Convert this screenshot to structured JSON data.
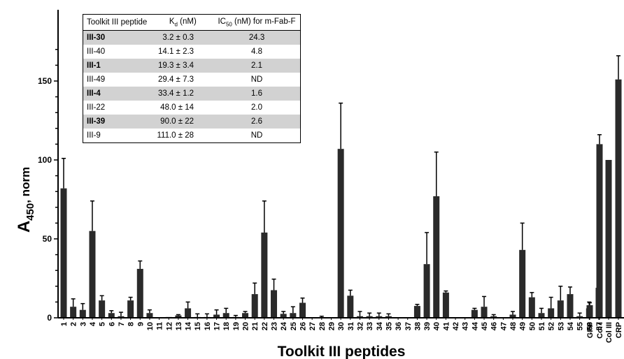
{
  "chart_data": {
    "type": "bar",
    "xlabel": "Toolkit III peptides",
    "ylabel_main": "A",
    "ylabel_sub": "450",
    "ylabel_suffix": ", norm",
    "ylim": [
      0,
      170
    ],
    "yticks": [
      "0",
      "50",
      "100",
      "150"
    ],
    "categories": [
      "1",
      "2",
      "3",
      "4",
      "5",
      "6",
      "7",
      "8",
      "9",
      "10",
      "11",
      "12",
      "13",
      "14",
      "15",
      "16",
      "17",
      "18",
      "19",
      "20",
      "21",
      "22",
      "23",
      "24",
      "25",
      "26",
      "27",
      "28",
      "29",
      "30",
      "31",
      "32",
      "33",
      "34",
      "35",
      "36",
      "37",
      "38",
      "39",
      "40",
      "41",
      "42",
      "43",
      "44",
      "45",
      "46",
      "47",
      "48",
      "49",
      "50",
      "51",
      "52",
      "53",
      "54",
      "55",
      "56",
      "57",
      "GPP",
      "Col I",
      "Col III",
      "CRP"
    ],
    "values": [
      82,
      7,
      5,
      55,
      11,
      3,
      1,
      11,
      31,
      3,
      0,
      0.5,
      1.5,
      6,
      0.5,
      0.5,
      2,
      3,
      0.5,
      3,
      15,
      54,
      17.5,
      2.5,
      3,
      9.5,
      0,
      0,
      0,
      107,
      14,
      1,
      1,
      1,
      1,
      0,
      0,
      7.5,
      34,
      77,
      16,
      0,
      0,
      5,
      7,
      1,
      0,
      2,
      43,
      13,
      3,
      6,
      11,
      15,
      1,
      6,
      19,
      8,
      110,
      100,
      151
    ],
    "errors": [
      19,
      5,
      4,
      19,
      3,
      1.5,
      2.5,
      2,
      5,
      2,
      0,
      0,
      0.5,
      4,
      2,
      2,
      3,
      3,
      1,
      1,
      7,
      20,
      7,
      1.5,
      4,
      3,
      0,
      1,
      0,
      29,
      3.5,
      3,
      2,
      2,
      1.5,
      0,
      0,
      1,
      20,
      28,
      1,
      0,
      0,
      1,
      6.5,
      1,
      0,
      2,
      17,
      3,
      3,
      7,
      9,
      4.5,
      2,
      4,
      4.5,
      1.5,
      6,
      0,
      15
    ],
    "grid": false
  },
  "table": {
    "headers": {
      "peptide": "Toolkit III peptide",
      "kd_main": "K",
      "kd_sub": "d",
      "kd_suffix": " (nM)",
      "ic_main": "IC",
      "ic_sub": "50",
      "ic_suffix": " (nM) for m-Fab-F"
    },
    "rows": [
      {
        "peptide": "III-30",
        "kd": "3.2 ± 0.3",
        "ic50": "24.3",
        "shaded": true
      },
      {
        "peptide": "III-40",
        "kd": "14.1 ± 2.3",
        "ic50": "4.8",
        "shaded": false
      },
      {
        "peptide": "III-1",
        "kd": "19.3 ± 3.4",
        "ic50": "2.1",
        "shaded": true
      },
      {
        "peptide": "III-49",
        "kd": "29.4 ± 7.3",
        "ic50": "ND",
        "shaded": false
      },
      {
        "peptide": "III-4",
        "kd": "33.4 ± 1.2",
        "ic50": "1.6",
        "shaded": true
      },
      {
        "peptide": "III-22",
        "kd": "48.0 ± 14",
        "ic50": "2.0",
        "shaded": false
      },
      {
        "peptide": "III-39",
        "kd": "90.0 ± 22",
        "ic50": "2.6",
        "shaded": true
      },
      {
        "peptide": "III-9",
        "kd": "111.0 ± 28",
        "ic50": "ND",
        "shaded": false
      }
    ]
  },
  "colors": {
    "bar": "#2a2a2a",
    "axis": "#000000",
    "table_shade": "#d2d2d2"
  }
}
